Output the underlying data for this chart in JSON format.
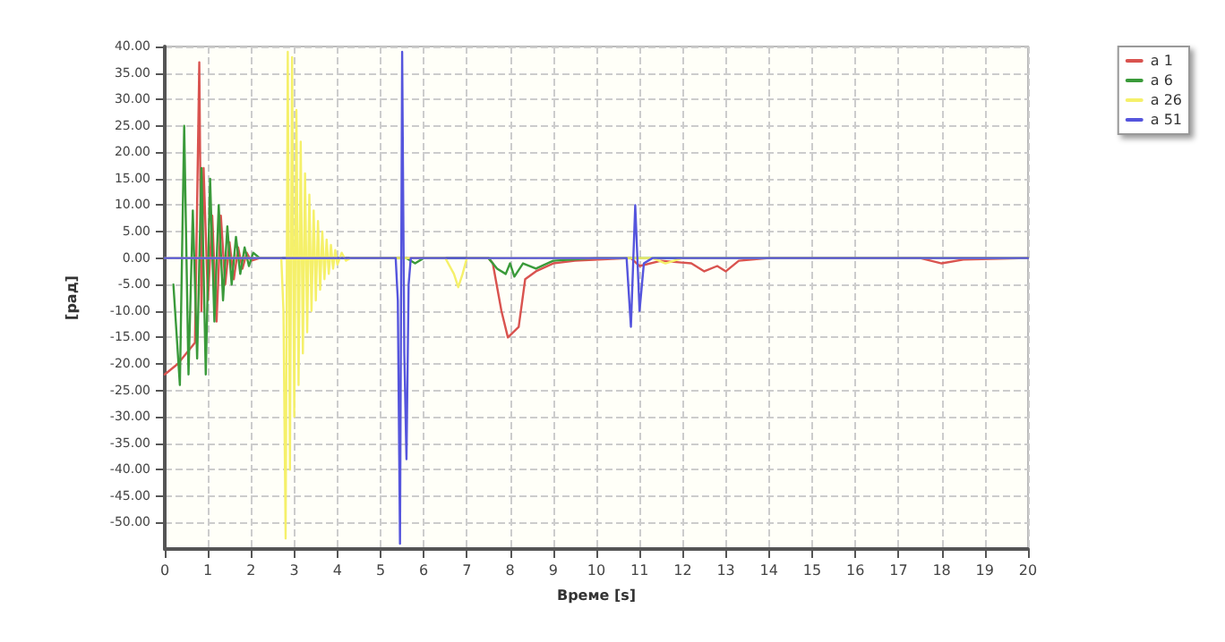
{
  "chart_data": {
    "type": "line",
    "xlabel": "Време [s]",
    "ylabel": "[рад]",
    "xlim": [
      0,
      20
    ],
    "xticks": [
      0,
      1,
      2,
      3,
      4,
      5,
      6,
      7,
      8,
      9,
      10,
      11,
      12,
      13,
      14,
      15,
      16,
      17,
      18,
      19,
      20
    ],
    "ylim": [
      -55,
      40
    ],
    "yticks": [
      {
        "value": -50,
        "label": "-50.00"
      },
      {
        "value": -45,
        "label": "-45.00"
      },
      {
        "value": -40,
        "label": "-40.00"
      },
      {
        "value": -35,
        "label": "-35.00"
      },
      {
        "value": -30,
        "label": "-30.00"
      },
      {
        "value": -25,
        "label": "-25.00"
      },
      {
        "value": -20,
        "label": "-20.00"
      },
      {
        "value": -15,
        "label": "-15.00"
      },
      {
        "value": -10,
        "label": "-10.00"
      },
      {
        "value": -5,
        "label": "-5.00"
      },
      {
        "value": 0,
        "label": "0.00"
      },
      {
        "value": 5,
        "label": "5.00"
      },
      {
        "value": 10,
        "label": "10.00"
      },
      {
        "value": 15,
        "label": "15.00"
      },
      {
        "value": 20,
        "label": "20.00"
      },
      {
        "value": 25,
        "label": "25.00"
      },
      {
        "value": 30,
        "label": "30.00"
      },
      {
        "value": 35,
        "label": "35.00"
      },
      {
        "value": 40,
        "label": "40.00"
      }
    ],
    "grid": true,
    "legend": "top right",
    "marker": "none",
    "line_style": "solid",
    "series": [
      {
        "name": "a 1",
        "color": "#d9534f",
        "x": [
          0,
          0.3,
          0.7,
          0.8,
          0.85,
          0.9,
          1.0,
          1.1,
          1.2,
          1.3,
          1.4,
          1.5,
          1.6,
          1.7,
          1.8,
          1.9,
          2.0,
          2.2,
          7.5,
          7.6,
          7.8,
          7.95,
          8.2,
          8.35,
          8.6,
          9,
          9.5,
          10.8,
          11,
          11.5,
          12.2,
          12.5,
          12.8,
          13,
          13.3,
          14,
          17.5,
          18,
          18.5,
          20
        ],
        "values": [
          -22,
          -20,
          -16,
          37,
          -10,
          17,
          -8,
          8,
          -12,
          8,
          -5,
          3,
          -4,
          2,
          -2,
          1,
          -0.5,
          0,
          0,
          -1,
          -10,
          -15,
          -13,
          -4,
          -2.5,
          -1,
          -0.5,
          0,
          -1.5,
          -0.5,
          -1,
          -2.5,
          -1.5,
          -2.5,
          -0.5,
          0,
          0,
          -1,
          -0.3,
          0
        ]
      },
      {
        "name": "a 6",
        "color": "#3a9a3a",
        "x": [
          0.2,
          0.35,
          0.45,
          0.55,
          0.65,
          0.75,
          0.85,
          0.95,
          1.05,
          1.15,
          1.25,
          1.35,
          1.45,
          1.55,
          1.65,
          1.75,
          1.85,
          1.95,
          2.05,
          2.2,
          5.6,
          5.8,
          6,
          7.5,
          7.7,
          7.9,
          8.0,
          8.1,
          8.3,
          8.6,
          9,
          10,
          20
        ],
        "values": [
          -5,
          -24,
          25,
          -22,
          9,
          -19,
          17,
          -22,
          15,
          -12,
          10,
          -8,
          6,
          -5,
          4,
          -3,
          2,
          -1.5,
          1,
          0,
          0,
          -1,
          0,
          0,
          -2,
          -3,
          -1,
          -3.5,
          -1,
          -2,
          -0.5,
          0,
          0
        ]
      },
      {
        "name": "a 26",
        "color": "#f5f06a",
        "x": [
          0,
          2.7,
          2.75,
          2.8,
          2.85,
          2.9,
          2.95,
          3.0,
          3.05,
          3.1,
          3.15,
          3.2,
          3.25,
          3.3,
          3.35,
          3.4,
          3.45,
          3.5,
          3.55,
          3.6,
          3.65,
          3.7,
          3.75,
          3.8,
          3.85,
          3.9,
          3.95,
          4.0,
          4.1,
          4.2,
          4.3,
          6.5,
          6.7,
          6.8,
          6.9,
          7.0,
          11.3,
          11.6,
          12,
          20
        ],
        "values": [
          0,
          0,
          -10,
          -53,
          39,
          -40,
          38,
          -30,
          28,
          -24,
          22,
          -18,
          16,
          -14,
          12,
          -10,
          9,
          -8,
          7,
          -6,
          5,
          -4,
          3.5,
          -3,
          2.5,
          -2,
          1.5,
          -1.2,
          1,
          -0.5,
          0,
          0,
          -3,
          -5.5,
          -3,
          0,
          0,
          -1,
          0,
          0
        ]
      },
      {
        "name": "a 51",
        "color": "#5555dd",
        "x": [
          0,
          5.35,
          5.4,
          5.45,
          5.5,
          5.55,
          5.6,
          5.65,
          5.7,
          10.7,
          10.8,
          10.9,
          11.0,
          11.1,
          11.3,
          20
        ],
        "values": [
          0,
          0,
          -8,
          -54,
          39,
          -18,
          -38,
          -5,
          0,
          0,
          -13,
          10,
          -10,
          -1,
          0,
          0
        ]
      }
    ]
  }
}
